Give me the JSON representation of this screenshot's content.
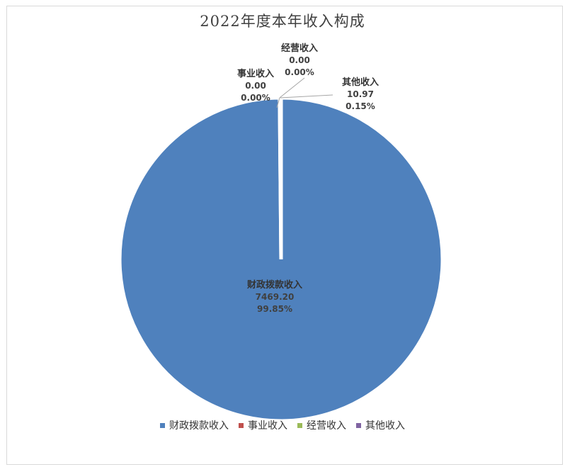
{
  "chart_data": {
    "type": "pie",
    "title": "2022年度本年收入构成",
    "slices": [
      {
        "name": "财政拨款收入",
        "value": 7469.2,
        "value_label": "7469.20",
        "percent_label": "99.85%",
        "color": "#4f81bd"
      },
      {
        "name": "事业收入",
        "value": 0.0,
        "value_label": "0.00",
        "percent_label": "0.00%",
        "color": "#c0504d"
      },
      {
        "name": "经营收入",
        "value": 0.0,
        "value_label": "0.00",
        "percent_label": "0.00%",
        "color": "#9bbb59"
      },
      {
        "name": "其他收入",
        "value": 10.97,
        "value_label": "10.97",
        "percent_label": "0.15%",
        "color": "#8064a2"
      }
    ],
    "legend_position": "bottom"
  }
}
